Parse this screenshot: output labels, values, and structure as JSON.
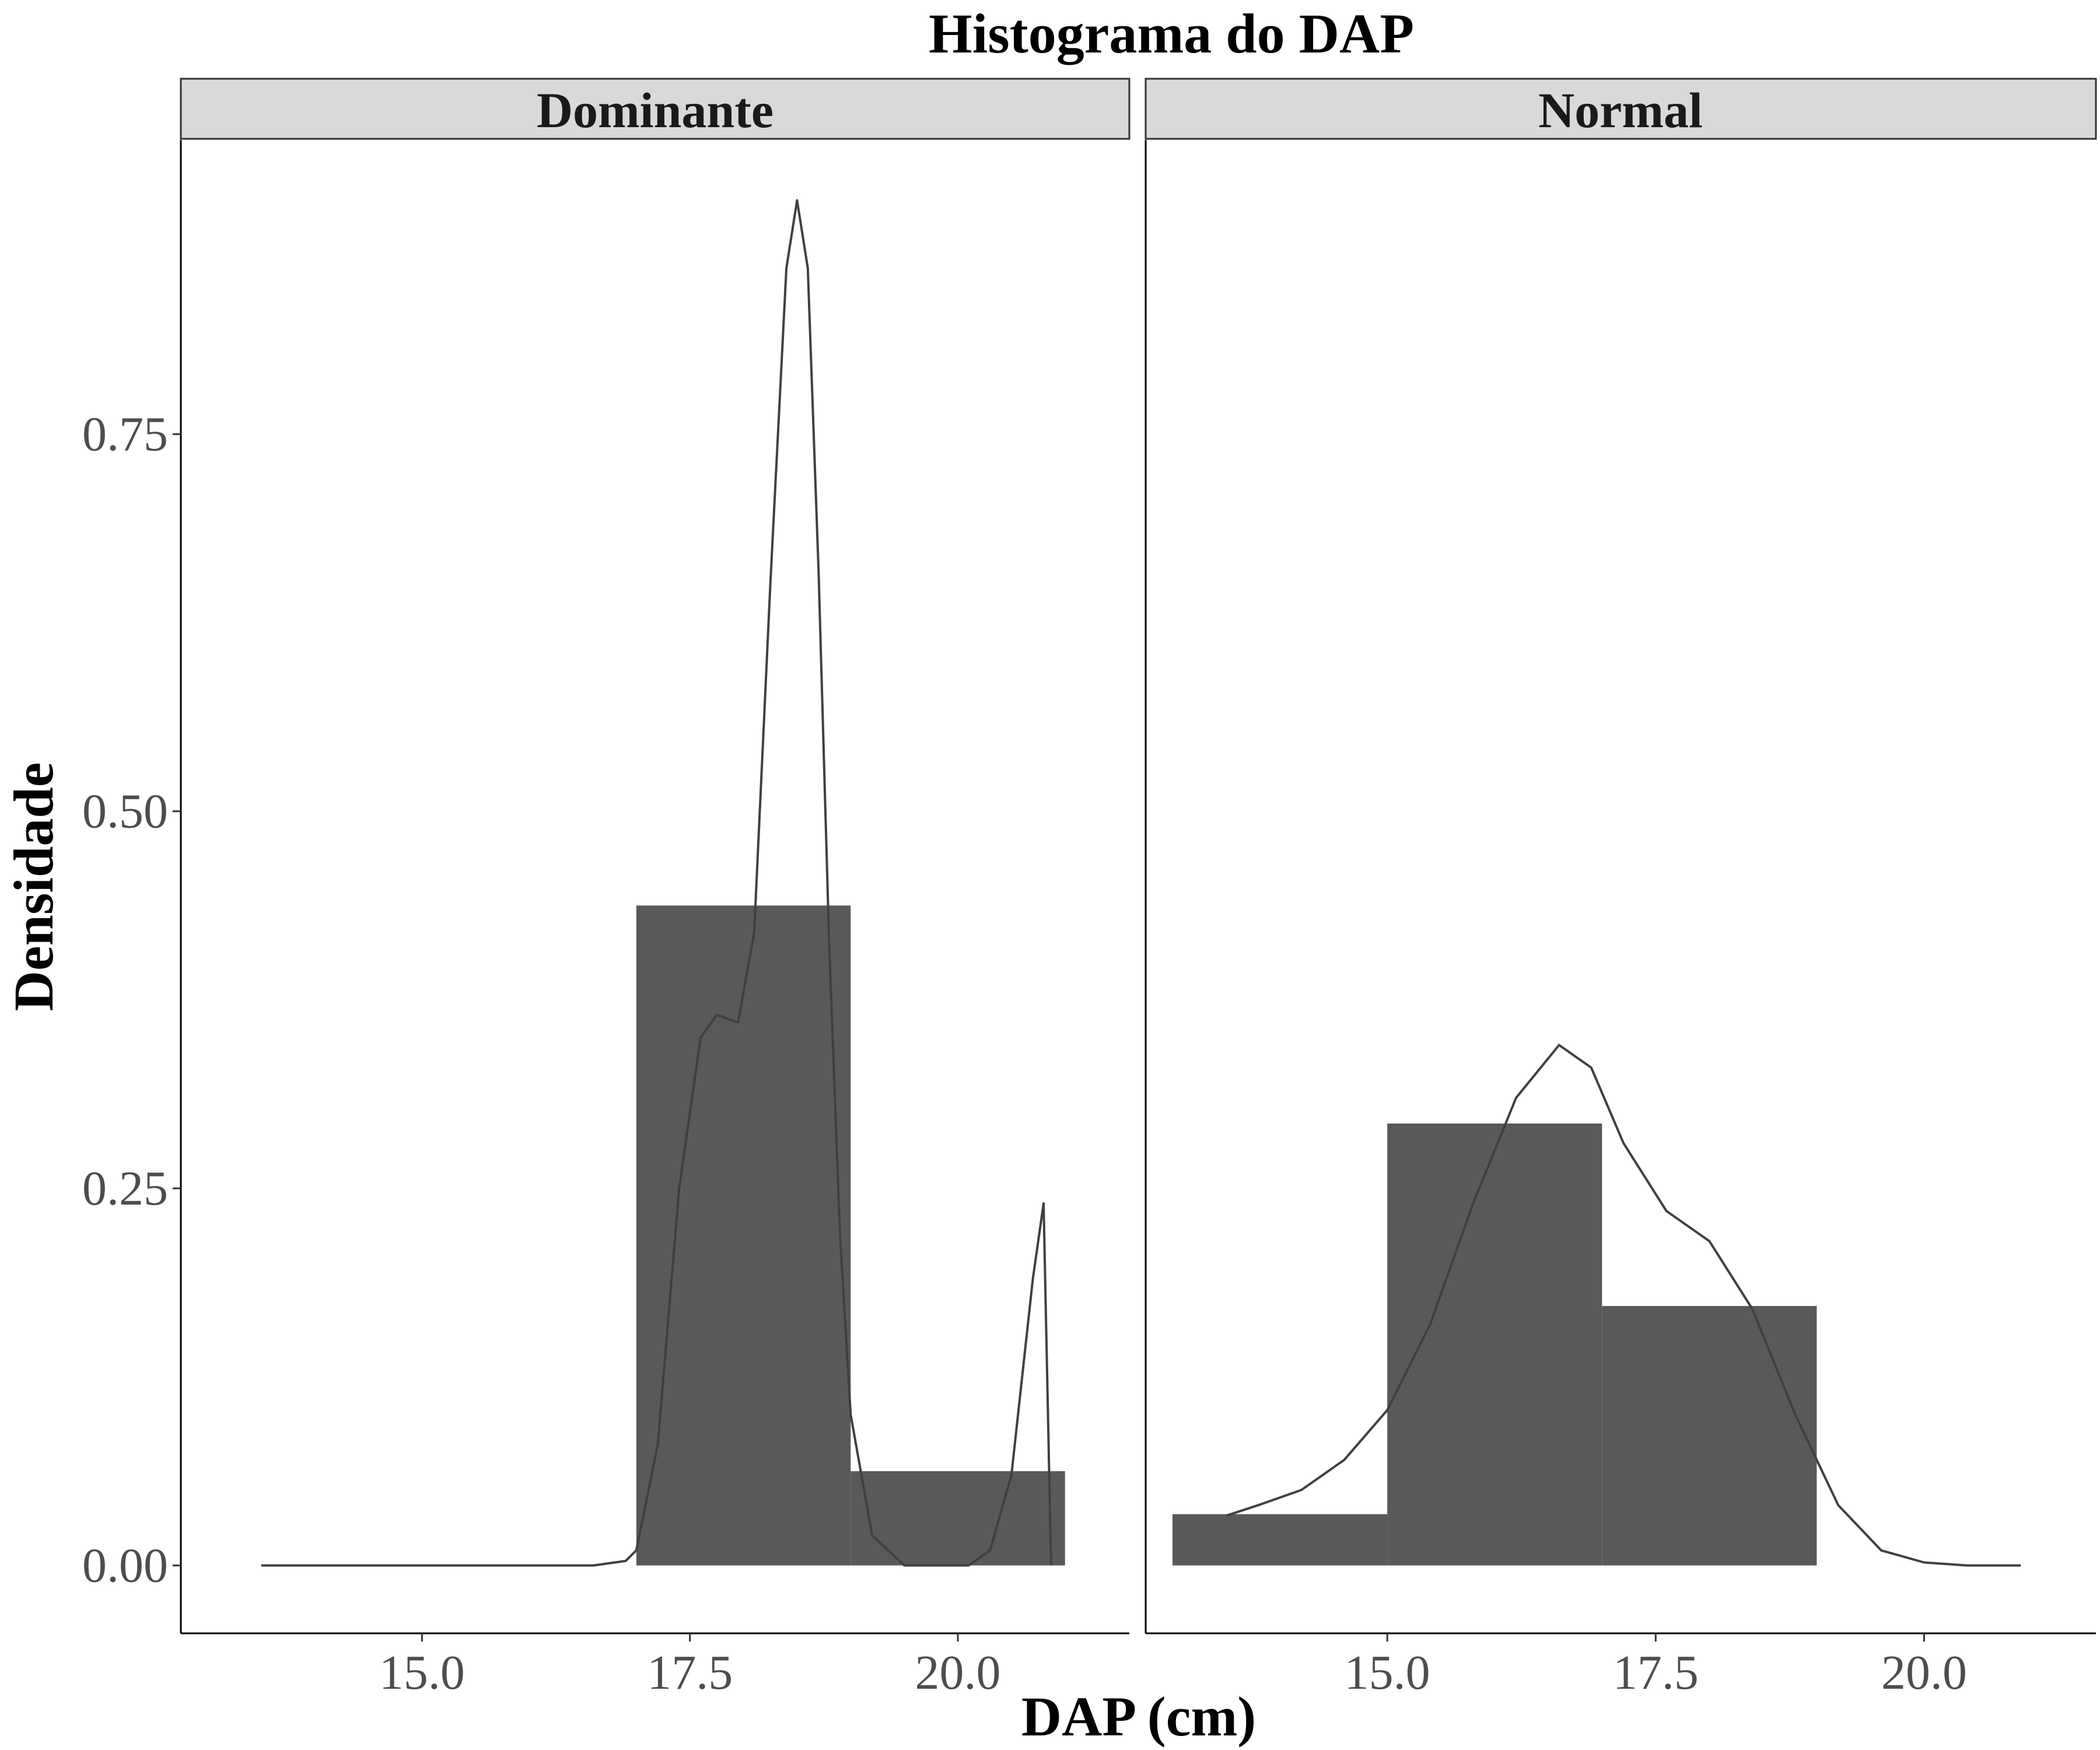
{
  "chart_data": {
    "type": "bar",
    "title": "Histograma do DAP",
    "xlabel": "DAP (cm)",
    "ylabel": "Densidade",
    "xlim": [
      12.75,
      21.6
    ],
    "ylim": [
      -0.045,
      0.945
    ],
    "x_ticks": [
      {
        "value": 15.0,
        "label": "15.0"
      },
      {
        "value": 17.5,
        "label": "17.5"
      },
      {
        "value": 20.0,
        "label": "20.0"
      }
    ],
    "y_ticks": [
      {
        "value": 0.0,
        "label": "0.00"
      },
      {
        "value": 0.25,
        "label": "0.25"
      },
      {
        "value": 0.5,
        "label": "0.50"
      },
      {
        "value": 0.75,
        "label": "0.75"
      }
    ],
    "grid": false,
    "colors": {
      "bar": "#595959",
      "density_line": "#404040",
      "strip_fill": "#d9d9d9",
      "panel_border": "#000000"
    },
    "facets": [
      {
        "label": "Dominante",
        "bins": [
          {
            "x0": 17.0,
            "x1": 19.0,
            "density": 0.4375
          },
          {
            "x0": 19.0,
            "x1": 21.0,
            "density": 0.0625
          }
        ],
        "density_curve": {
          "x": [
            13.5,
            16.6,
            16.9,
            17.0,
            17.2,
            17.4,
            17.6,
            17.75,
            17.95,
            18.1,
            18.25,
            18.4,
            18.5,
            18.6,
            18.7,
            18.8,
            18.9,
            19.0,
            19.2,
            19.5,
            19.8,
            20.1,
            20.3,
            20.5,
            20.7,
            20.8,
            20.87
          ],
          "y": [
            0.0,
            0.0,
            0.003,
            0.01,
            0.08,
            0.25,
            0.35,
            0.365,
            0.36,
            0.42,
            0.65,
            0.86,
            0.905,
            0.86,
            0.66,
            0.41,
            0.22,
            0.1,
            0.02,
            0.0,
            0.0,
            0.0,
            0.01,
            0.06,
            0.19,
            0.24,
            0.0
          ]
        }
      },
      {
        "label": "Normal",
        "bins": [
          {
            "x0": 13.0,
            "x1": 15.0,
            "density": 0.034
          },
          {
            "x0": 15.0,
            "x1": 17.0,
            "density": 0.293
          },
          {
            "x0": 17.0,
            "x1": 19.0,
            "density": 0.172
          }
        ],
        "density_curve": {
          "x": [
            13.5,
            13.8,
            14.2,
            14.6,
            15.0,
            15.4,
            15.8,
            16.2,
            16.6,
            16.9,
            17.2,
            17.6,
            18.0,
            18.4,
            18.8,
            19.2,
            19.6,
            20.0,
            20.4,
            20.9
          ],
          "y": [
            0.033,
            0.04,
            0.05,
            0.07,
            0.103,
            0.16,
            0.24,
            0.31,
            0.345,
            0.33,
            0.28,
            0.235,
            0.215,
            0.17,
            0.1,
            0.04,
            0.01,
            0.002,
            0.0,
            0.0
          ]
        }
      }
    ]
  }
}
